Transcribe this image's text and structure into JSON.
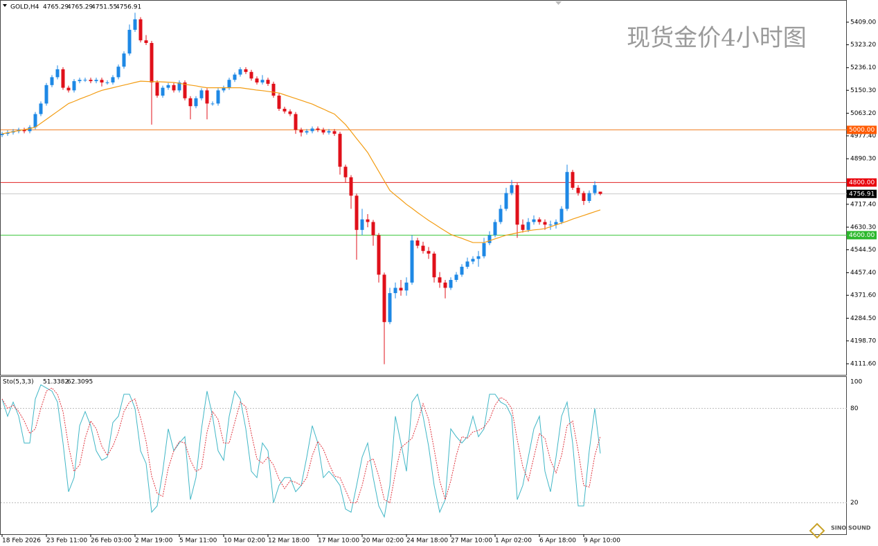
{
  "header": {
    "symbol": "GOLD,H4",
    "logo": "SINO SOUND"
  },
  "chart_data": [
    {
      "type": "candlestick",
      "title": "现货金价4小时图",
      "categories": [
        "18 Feb 2026",
        null,
        null,
        null,
        null,
        null,
        null,
        null,
        "23 Feb 11:00",
        null,
        null,
        null,
        null,
        null,
        null,
        null,
        "26 Feb 03:00",
        null,
        null,
        null,
        null,
        null,
        null,
        null,
        "2 Mar 19:00",
        null,
        null,
        null,
        null,
        null,
        null,
        null,
        "5 Mar 11:00",
        null,
        null,
        null,
        null,
        null,
        null,
        null,
        "10 Mar 02:00",
        null,
        null,
        null,
        null,
        null,
        null,
        null,
        "12 Mar 18:00",
        null,
        null,
        null,
        null,
        null,
        null,
        null,
        null,
        "17 Mar 10:00",
        null,
        null,
        null,
        null,
        null,
        null,
        null,
        "20 Mar 02:00",
        null,
        null,
        null,
        null,
        null,
        null,
        null,
        "24 Mar 18:00",
        null,
        null,
        null,
        null,
        null,
        null,
        null,
        "27 Mar 10:00",
        null,
        null,
        null,
        null,
        null,
        null,
        null,
        "1 Apr 02:00",
        null,
        null,
        null,
        null,
        null,
        null,
        null,
        "6 Apr 18:00",
        null,
        null,
        null,
        null,
        null,
        null,
        null,
        "9 Apr 10:00",
        null,
        null,
        null
      ],
      "candles": [
        [
          4980,
          4993,
          4972,
          4985
        ],
        [
          4985,
          4998,
          4977,
          4990
        ],
        [
          4990,
          5003,
          4982,
          4995
        ],
        [
          4995,
          5008,
          4987,
          5000
        ],
        [
          5000,
          5008,
          4987,
          4995
        ],
        [
          4995,
          5018,
          4987,
          5010
        ],
        [
          5010,
          5068,
          5002,
          5060
        ],
        [
          5060,
          5108,
          5052,
          5100
        ],
        [
          5100,
          5178,
          5092,
          5170
        ],
        [
          5170,
          5208,
          5162,
          5200
        ],
        [
          5200,
          5245,
          5192,
          5230
        ],
        [
          5230,
          5238,
          5152,
          5160
        ],
        [
          5160,
          5168,
          5142,
          5150
        ],
        [
          5150,
          5193,
          5142,
          5185
        ],
        [
          5185,
          5198,
          5177,
          5190
        ],
        [
          5190,
          5198,
          5182,
          5190
        ],
        [
          5190,
          5198,
          5177,
          5185
        ],
        [
          5185,
          5198,
          5177,
          5190
        ],
        [
          5190,
          5198,
          5165,
          5180
        ],
        [
          5180,
          5188,
          5172,
          5180
        ],
        [
          5180,
          5208,
          5172,
          5200
        ],
        [
          5200,
          5248,
          5192,
          5240
        ],
        [
          5240,
          5298,
          5232,
          5290
        ],
        [
          5290,
          5400,
          5282,
          5380
        ],
        [
          5380,
          5445,
          5372,
          5420
        ],
        [
          5420,
          5428,
          5332,
          5340
        ],
        [
          5340,
          5360,
          5322,
          5330
        ],
        [
          5330,
          5338,
          5020,
          5180
        ],
        [
          5180,
          5188,
          5122,
          5130
        ],
        [
          5130,
          5168,
          5122,
          5160
        ],
        [
          5160,
          5178,
          5152,
          5170
        ],
        [
          5170,
          5178,
          5142,
          5150
        ],
        [
          5150,
          5188,
          5142,
          5180
        ],
        [
          5180,
          5188,
          5112,
          5120
        ],
        [
          5120,
          5128,
          5040,
          5090
        ],
        [
          5090,
          5128,
          5082,
          5120
        ],
        [
          5120,
          5158,
          5112,
          5150
        ],
        [
          5150,
          5158,
          5040,
          5100
        ],
        [
          5100,
          5108,
          5092,
          5100
        ],
        [
          5100,
          5158,
          5092,
          5150
        ],
        [
          5150,
          5168,
          5142,
          5160
        ],
        [
          5160,
          5198,
          5152,
          5190
        ],
        [
          5190,
          5218,
          5182,
          5210
        ],
        [
          5210,
          5238,
          5202,
          5230
        ],
        [
          5230,
          5238,
          5212,
          5220
        ],
        [
          5220,
          5228,
          5187,
          5195
        ],
        [
          5195,
          5203,
          5172,
          5180
        ],
        [
          5180,
          5208,
          5172,
          5190
        ],
        [
          5190,
          5198,
          5167,
          5175
        ],
        [
          5175,
          5183,
          5122,
          5130
        ],
        [
          5130,
          5138,
          5072,
          5080
        ],
        [
          5080,
          5088,
          5062,
          5070
        ],
        [
          5070,
          5078,
          5052,
          5060
        ],
        [
          5060,
          5068,
          4985,
          5000
        ],
        [
          5000,
          5008,
          4975,
          4990
        ],
        [
          4990,
          5003,
          4982,
          4995
        ],
        [
          4995,
          5013,
          4987,
          5005
        ],
        [
          5005,
          5013,
          4992,
          5000
        ],
        [
          5000,
          5008,
          4982,
          4990
        ],
        [
          4990,
          5003,
          4982,
          4995
        ],
        [
          4995,
          5003,
          4977,
          4985
        ],
        [
          4985,
          4993,
          4830,
          4860
        ],
        [
          4860,
          4868,
          4800,
          4820
        ],
        [
          4820,
          4828,
          4700,
          4750
        ],
        [
          4750,
          4758,
          4507,
          4620
        ],
        [
          4620,
          4700,
          4600,
          4660
        ],
        [
          4660,
          4680,
          4630,
          4650
        ],
        [
          4650,
          4658,
          4560,
          4600
        ],
        [
          4600,
          4608,
          4420,
          4450
        ],
        [
          4450,
          4458,
          4110,
          4270
        ],
        [
          4270,
          4400,
          4262,
          4380
        ],
        [
          4380,
          4420,
          4360,
          4400
        ],
        [
          4400,
          4430,
          4370,
          4390
        ],
        [
          4390,
          4440,
          4370,
          4420
        ],
        [
          4420,
          4600,
          4412,
          4580
        ],
        [
          4580,
          4590,
          4550,
          4560
        ],
        [
          4560,
          4575,
          4530,
          4540
        ],
        [
          4540,
          4555,
          4510,
          4530
        ],
        [
          4530,
          4538,
          4420,
          4440
        ],
        [
          4440,
          4460,
          4400,
          4420
        ],
        [
          4420,
          4430,
          4360,
          4400
        ],
        [
          4400,
          4440,
          4392,
          4430
        ],
        [
          4430,
          4460,
          4422,
          4450
        ],
        [
          4450,
          4490,
          4442,
          4480
        ],
        [
          4480,
          4515,
          4472,
          4500
        ],
        [
          4500,
          4520,
          4490,
          4510
        ],
        [
          4510,
          4540,
          4480,
          4520
        ],
        [
          4520,
          4590,
          4512,
          4570
        ],
        [
          4570,
          4615,
          4562,
          4600
        ],
        [
          4600,
          4660,
          4592,
          4650
        ],
        [
          4650,
          4715,
          4642,
          4700
        ],
        [
          4700,
          4780,
          4692,
          4760
        ],
        [
          4760,
          4810,
          4752,
          4790
        ],
        [
          4790,
          4798,
          4590,
          4640
        ],
        [
          4640,
          4660,
          4610,
          4620
        ],
        [
          4620,
          4665,
          4612,
          4650
        ],
        [
          4650,
          4675,
          4640,
          4660
        ],
        [
          4660,
          4668,
          4640,
          4650
        ],
        [
          4650,
          4660,
          4620,
          4640
        ],
        [
          4640,
          4655,
          4620,
          4640
        ],
        [
          4640,
          4660,
          4625,
          4650
        ],
        [
          4650,
          4710,
          4642,
          4700
        ],
        [
          4700,
          4868,
          4692,
          4840
        ],
        [
          4840,
          4848,
          4772,
          4780
        ],
        [
          4780,
          4790,
          4750,
          4760
        ],
        [
          4760,
          4768,
          4715,
          4730
        ],
        [
          4730,
          4770,
          4722,
          4760
        ],
        [
          4760,
          4805,
          4752,
          4790
        ],
        [
          4765.29,
          4765.29,
          4751.55,
          4756.91
        ]
      ],
      "up_color": "#1e88e5",
      "down_color": "#e0101a",
      "ma": {
        "color": "#f39c12",
        "values": [
          4985,
          4989,
          4993,
          4997,
          5001,
          5005,
          5010,
          5025,
          5040,
          5055,
          5070,
          5085,
          5100,
          5108,
          5117,
          5125,
          5133,
          5142,
          5150,
          5155,
          5160,
          5165,
          5170,
          5175,
          5180,
          5185,
          5184,
          5183,
          5183,
          5182,
          5181,
          5180,
          5177,
          5173,
          5170,
          5167,
          5163,
          5160,
          5160,
          5160,
          5160,
          5160,
          5160,
          5160,
          5157,
          5154,
          5151,
          5149,
          5146,
          5143,
          5140,
          5133,
          5126,
          5119,
          5112,
          5105,
          5098,
          5088,
          5079,
          5069,
          5060,
          5040,
          5020,
          4994,
          4967,
          4941,
          4914,
          4878,
          4842,
          4806,
          4770,
          4752,
          4735,
          4717,
          4702,
          4686,
          4671,
          4656,
          4643,
          4629,
          4616,
          4603,
          4595,
          4588,
          4580,
          4572,
          4572,
          4572,
          4579,
          4586,
          4593,
          4600,
          4604,
          4609,
          4613,
          4617,
          4620,
          4622,
          4625,
          4632,
          4639,
          4646,
          4653,
          4661,
          4668,
          4675,
          4682,
          4689,
          4696
        ]
      },
      "ylim": [
        4069.5,
        5493.2
      ],
      "yticks": [
        {
          "value": 5409,
          "label": "5409.00"
        },
        {
          "value": 5323.2,
          "label": "5323.20"
        },
        {
          "value": 5236.1,
          "label": "5236.10"
        },
        {
          "value": 5150.3,
          "label": "5150.30"
        },
        {
          "value": 5063.2,
          "label": "5063.20"
        },
        {
          "value": 4977.4,
          "label": "4977.40"
        },
        {
          "value": 4890.3,
          "label": "4890.30"
        },
        {
          "value": 4717.4,
          "label": "4717.40"
        },
        {
          "value": 4630.3,
          "label": "4630.30"
        },
        {
          "value": 4544.5,
          "label": "4544.50"
        },
        {
          "value": 4457.4,
          "label": "4457.40"
        },
        {
          "value": 4371.6,
          "label": "4371.60"
        },
        {
          "value": 4284.5,
          "label": "4284.50"
        },
        {
          "value": 4198.7,
          "label": "4198.70"
        },
        {
          "value": 4111.6,
          "label": "4111.60"
        }
      ],
      "levels": [
        {
          "value": 5000,
          "label": "5000.00",
          "color": "#f07c1c",
          "box": "#ff5a00"
        },
        {
          "value": 4800,
          "label": "4800.00",
          "color": "#e02020",
          "box": "#e8000b"
        },
        {
          "value": 4600,
          "label": "4600.00",
          "color": "#3cc43c",
          "box": "#2db82d"
        }
      ],
      "current_color": "#000000"
    },
    {
      "type": "line",
      "title": "Sto(5,3,3)",
      "series": [
        {
          "color": "#3fb6c6",
          "values": [
            86,
            75,
            84,
            75,
            58,
            58,
            86,
            95,
            93,
            91,
            84,
            58,
            27,
            36,
            69,
            78,
            69,
            53,
            47,
            49,
            71,
            75,
            89,
            89,
            80,
            53,
            45,
            14,
            18,
            40,
            67,
            53,
            58,
            62,
            22,
            36,
            67,
            91,
            75,
            53,
            47,
            75,
            91,
            86,
            67,
            40,
            36,
            58,
            53,
            20,
            31,
            36,
            36,
            27,
            31,
            49,
            69,
            58,
            36,
            40,
            36,
            31,
            16,
            14,
            31,
            49,
            58,
            36,
            18,
            11,
            31,
            75,
            58,
            40,
            84,
            89,
            75,
            56,
            31,
            14,
            22,
            67,
            62,
            58,
            62,
            75,
            62,
            67,
            89,
            89,
            84,
            82,
            75,
            22,
            31,
            49,
            67,
            75,
            40,
            27,
            49,
            75,
            84,
            58,
            18,
            18,
            53,
            80,
            51.3382
          ]
        },
        {
          "color": "#e0303a",
          "dashed": true,
          "values": [
            86,
            80,
            82,
            78,
            72,
            64,
            67,
            80,
            91,
            93,
            89,
            78,
            56,
            40,
            44,
            61,
            72,
            67,
            56,
            50,
            56,
            65,
            78,
            84,
            86,
            74,
            59,
            37,
            26,
            24,
            42,
            53,
            59,
            58,
            47,
            40,
            42,
            65,
            78,
            73,
            58,
            58,
            71,
            84,
            81,
            64,
            48,
            45,
            49,
            44,
            35,
            29,
            34,
            33,
            31,
            36,
            50,
            59,
            54,
            45,
            37,
            36,
            28,
            20,
            20,
            31,
            46,
            48,
            37,
            22,
            20,
            39,
            55,
            58,
            61,
            71,
            83,
            73,
            54,
            34,
            22,
            34,
            50,
            62,
            61,
            65,
            66,
            68,
            73,
            82,
            87,
            85,
            80,
            60,
            43,
            34,
            49,
            64,
            61,
            47,
            39,
            50,
            69,
            72,
            53,
            31,
            30,
            50,
            62.3095
          ]
        }
      ],
      "ylim": [
        0,
        100
      ],
      "yticks": [
        100,
        80,
        20
      ]
    }
  ]
}
